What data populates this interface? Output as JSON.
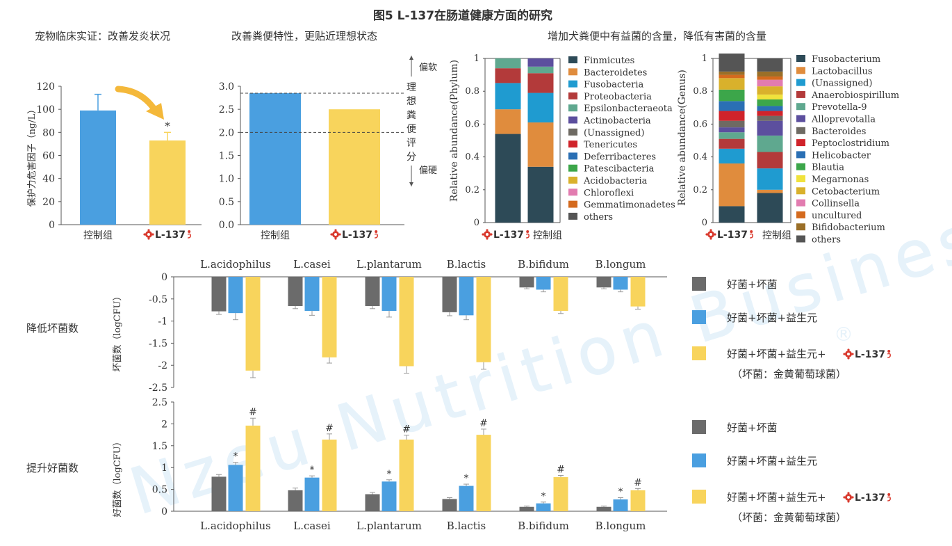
{
  "figure": {
    "title": "图5 L-137在肠道健康方面的研究",
    "sub_left": "宠物临床实证：改善发炎状况",
    "sub_mid": "改善粪便特性，更贴近理想状态",
    "sub_right": "增加犬粪便中有益菌的含量，降低有害菌的含量",
    "brand": "L-137",
    "watermark": "Nzeu Nutrition Business",
    "watermark_reg": "®"
  },
  "colors": {
    "blue": "#4a9fe0",
    "yellow": "#f8d45c",
    "gray": "#6b6b6b",
    "red": "#d93a2e",
    "arrow": "#f4b83a"
  },
  "chart_data": [
    {
      "id": "inflammation",
      "type": "bar",
      "categories": [
        "控制组",
        "L-137"
      ],
      "values": [
        99,
        73
      ],
      "errors": [
        14,
        7
      ],
      "ylabel": "保护力危害因子（ng/L）",
      "ylim": [
        0,
        120
      ],
      "yticks": [
        0,
        20,
        40,
        60,
        80,
        100,
        120
      ],
      "annotations": [
        "*"
      ]
    },
    {
      "id": "stool",
      "type": "bar",
      "categories": [
        "控制组",
        "L-137"
      ],
      "values": [
        2.85,
        2.5
      ],
      "ylim": [
        0,
        3.0
      ],
      "yticks": [
        "0.0",
        "0.5",
        "1.0",
        "1.5",
        "2.0",
        "2.5",
        "3.0"
      ],
      "ideal_range": [
        2.0,
        2.85
      ],
      "ylabel": "理想粪便评分",
      "top_label": "偏软",
      "bottom_label": "偏硬"
    },
    {
      "id": "phylum",
      "type": "bar",
      "stacked": true,
      "categories": [
        "L-137",
        "控制组"
      ],
      "ylabel": "Relative abundance(Phylum)",
      "ylim": [
        0,
        1
      ],
      "yticks": [
        "0",
        "0.2",
        "0.4",
        "0.6",
        "0.8",
        "1"
      ],
      "series": [
        {
          "name": "Finmicutes",
          "color": "#2d4a57",
          "values": [
            0.54,
            0.34
          ]
        },
        {
          "name": "Bacteroidetes",
          "color": "#e08c3d",
          "values": [
            0.15,
            0.27
          ]
        },
        {
          "name": "Fusobacteria",
          "color": "#1f9bd0",
          "values": [
            0.16,
            0.18
          ]
        },
        {
          "name": "Proteobacteria",
          "color": "#b33a3a",
          "values": [
            0.09,
            0.12
          ]
        },
        {
          "name": "Epsilonbacteraeota",
          "color": "#5fa88f",
          "values": [
            0.06,
            0.04
          ]
        },
        {
          "name": "Actinobacteria",
          "color": "#5c4f9e",
          "values": [
            0.0,
            0.05
          ]
        },
        {
          "name": "(Unassigned)",
          "color": "#6e6a63",
          "values": [
            0.0,
            0.0
          ]
        },
        {
          "name": "Tenericutes",
          "color": "#d0232a",
          "values": [
            0,
            0
          ]
        },
        {
          "name": "Deferribacteres",
          "color": "#2a6fb4",
          "values": [
            0,
            0
          ]
        },
        {
          "name": "Patescibacteria",
          "color": "#3ca64a",
          "values": [
            0,
            0
          ]
        },
        {
          "name": "Acidobacteria",
          "color": "#d9b12c",
          "values": [
            0,
            0
          ]
        },
        {
          "name": "Chloroflexi",
          "color": "#e27cb0",
          "values": [
            0,
            0
          ]
        },
        {
          "name": "Gemmatimonadetes",
          "color": "#d46a1e",
          "values": [
            0,
            0
          ]
        },
        {
          "name": "others",
          "color": "#555555",
          "values": [
            0,
            0
          ]
        }
      ]
    },
    {
      "id": "genus",
      "type": "bar",
      "stacked": true,
      "categories": [
        "L-137",
        "控制组"
      ],
      "ylabel": "Relative abundance(Genus)",
      "ylim": [
        0,
        1
      ],
      "yticks": [
        "0",
        "0.2",
        "0.4",
        "0.6",
        "0.8",
        "1"
      ],
      "series": [
        {
          "name": "Fusobacterium",
          "color": "#2d4a57",
          "values": [
            0.1,
            0.18
          ]
        },
        {
          "name": "Lactobacillus",
          "color": "#e08c3d",
          "values": [
            0.26,
            0.02
          ]
        },
        {
          "name": "(Unassigned)",
          "color": "#1f9bd0",
          "values": [
            0.09,
            0.13
          ]
        },
        {
          "name": "Anaerobiospirillum",
          "color": "#b33a3a",
          "values": [
            0.06,
            0.1
          ]
        },
        {
          "name": "Prevotella-9",
          "color": "#5fa88f",
          "values": [
            0.04,
            0.1
          ]
        },
        {
          "name": "Alloprevotalla",
          "color": "#5c4f9e",
          "values": [
            0.03,
            0.09
          ]
        },
        {
          "name": "Bacteroides",
          "color": "#6e6a63",
          "values": [
            0.04,
            0.03
          ]
        },
        {
          "name": "Peptoclostridium",
          "color": "#d0232a",
          "values": [
            0.06,
            0.03
          ]
        },
        {
          "name": "Helicobacter",
          "color": "#2a6fb4",
          "values": [
            0.06,
            0.03
          ]
        },
        {
          "name": "Blautia",
          "color": "#3ca64a",
          "values": [
            0.07,
            0.04
          ]
        },
        {
          "name": "Megarnonas",
          "color": "#f0e23c",
          "values": [
            0.0,
            0.03
          ]
        },
        {
          "name": "Cetobacterium",
          "color": "#d9b12c",
          "values": [
            0.07,
            0.05
          ]
        },
        {
          "name": "Collinsella",
          "color": "#e27cb0",
          "values": [
            0.0,
            0.04
          ]
        },
        {
          "name": "uncultured",
          "color": "#d46a1e",
          "values": [
            0.02,
            0.02
          ]
        },
        {
          "name": "Bifidobacterium",
          "color": "#9a6f28",
          "values": [
            0.02,
            0.03
          ]
        },
        {
          "name": "others",
          "color": "#555555",
          "values": [
            0.11,
            0.08
          ]
        }
      ]
    },
    {
      "id": "bad_bacteria",
      "type": "bar",
      "row_label": "降低坏菌数",
      "ylabel": "坏菌数（logCFU）",
      "categories": [
        "L.acidophilus",
        "L.casei",
        "L.plantarum",
        "B.lactis",
        "B.bifidum",
        "B.longum"
      ],
      "ylim": [
        -2.5,
        0
      ],
      "yticks": [
        "0",
        "-0.5",
        "-1",
        "-1.5",
        "-2",
        "-2.5"
      ],
      "series": [
        {
          "name": "好菌+坏菌",
          "color": "#6b6b6b",
          "values": [
            -0.78,
            -0.66,
            -0.66,
            -0.8,
            -0.24,
            -0.24
          ],
          "errors": [
            0.07,
            0.06,
            0.06,
            0.08,
            0.03,
            0.03
          ]
        },
        {
          "name": "好菌+坏菌+益生元",
          "color": "#4a9fe0",
          "values": [
            -0.82,
            -0.77,
            -0.77,
            -0.87,
            -0.29,
            -0.29
          ],
          "errors": [
            0.15,
            0.1,
            0.14,
            0.1,
            0.05,
            0.05
          ]
        },
        {
          "name": "好菌+坏菌+益生元+",
          "color": "#f8d45c",
          "values": [
            -2.12,
            -1.82,
            -2.02,
            -1.93,
            -0.77,
            -0.67
          ],
          "errors": [
            0.16,
            0.13,
            0.16,
            0.16,
            0.06,
            0.06
          ]
        }
      ],
      "legend_note": "（坏菌：金黄葡萄球菌）"
    },
    {
      "id": "good_bacteria",
      "type": "bar",
      "row_label": "提升好菌数",
      "ylabel": "好菌数（logCFU）",
      "categories": [
        "L.acidophilus",
        "L.casei",
        "L.plantarum",
        "B.lactis",
        "B.bifidum",
        "B.longum"
      ],
      "ylim": [
        0,
        2.5
      ],
      "yticks": [
        "0",
        "0.5",
        "1",
        "1.5",
        "2",
        "2.5"
      ],
      "series": [
        {
          "name": "好菌+坏菌",
          "color": "#6b6b6b",
          "values": [
            0.79,
            0.48,
            0.39,
            0.28,
            0.1,
            0.1
          ],
          "errors": [
            0.05,
            0.05,
            0.04,
            0.03,
            0.02,
            0.02
          ]
        },
        {
          "name": "好菌+坏菌+益生元",
          "color": "#4a9fe0",
          "values": [
            1.06,
            0.77,
            0.68,
            0.58,
            0.18,
            0.27
          ],
          "errors": [
            0.06,
            0.04,
            0.04,
            0.04,
            0.03,
            0.04
          ]
        },
        {
          "name": "好菌+坏菌+益生元+",
          "color": "#f8d45c",
          "values": [
            1.96,
            1.64,
            1.64,
            1.75,
            0.78,
            0.48
          ],
          "errors": [
            0.17,
            0.13,
            0.1,
            0.13,
            0.04,
            0.04
          ]
        }
      ],
      "sig_blue": "*",
      "sig_yellow": "#",
      "legend_note": "（坏菌：金黄葡萄球菌）"
    }
  ]
}
